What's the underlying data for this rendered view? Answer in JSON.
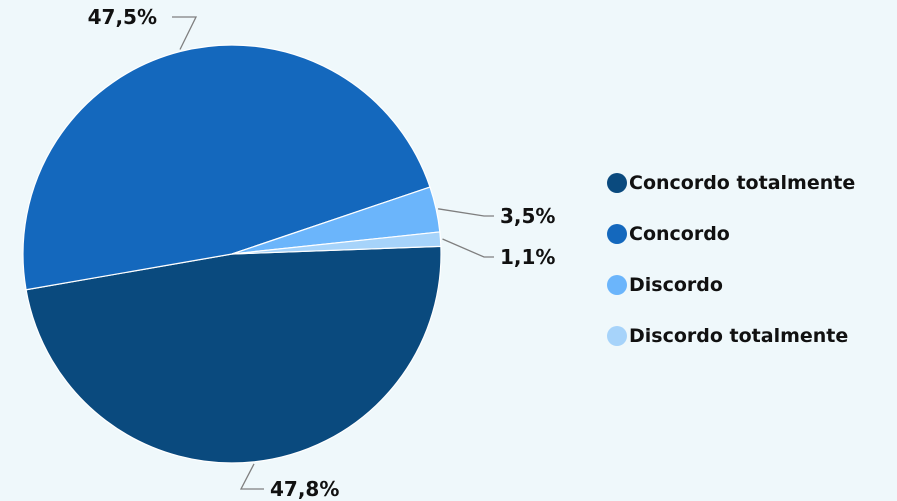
{
  "chart_data": {
    "type": "pie",
    "title": "",
    "legend_position": "right",
    "slices": [
      {
        "name": "Concordo totalmente",
        "value": 47.8,
        "label": "47,8%",
        "color": "#0a4a7e"
      },
      {
        "name": "Concordo",
        "value": 47.5,
        "label": "47,5%",
        "color": "#1468bd"
      },
      {
        "name": "Discordo",
        "value": 3.5,
        "label": "3,5%",
        "color": "#6bb5fb"
      },
      {
        "name": "Discordo totalmente",
        "value": 1.1,
        "label": "1,1%",
        "color": "#a6d3fa"
      }
    ]
  }
}
